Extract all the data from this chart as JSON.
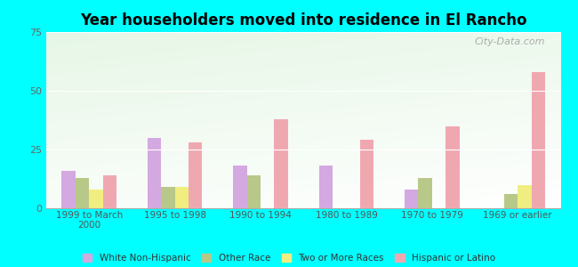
{
  "title": "Year householders moved into residence in El Rancho",
  "categories": [
    "1999 to March\n2000",
    "1995 to 1998",
    "1990 to 1994",
    "1980 to 1989",
    "1970 to 1979",
    "1969 or earlier"
  ],
  "series": {
    "White Non-Hispanic": [
      16,
      30,
      18,
      18,
      8,
      0
    ],
    "Other Race": [
      13,
      9,
      14,
      0,
      13,
      6
    ],
    "Two or More Races": [
      8,
      9,
      0,
      0,
      0,
      10
    ],
    "Hispanic or Latino": [
      14,
      28,
      38,
      29,
      35,
      58
    ]
  },
  "colors": {
    "White Non-Hispanic": "#d4a8e0",
    "Other Race": "#b8c888",
    "Two or More Races": "#f0ee80",
    "Hispanic or Latino": "#f0a8b0"
  },
  "ylim": [
    0,
    75
  ],
  "yticks": [
    0,
    25,
    50,
    75
  ],
  "background_color": "#00ffff",
  "watermark": "City-Data.com",
  "bar_width": 0.16
}
